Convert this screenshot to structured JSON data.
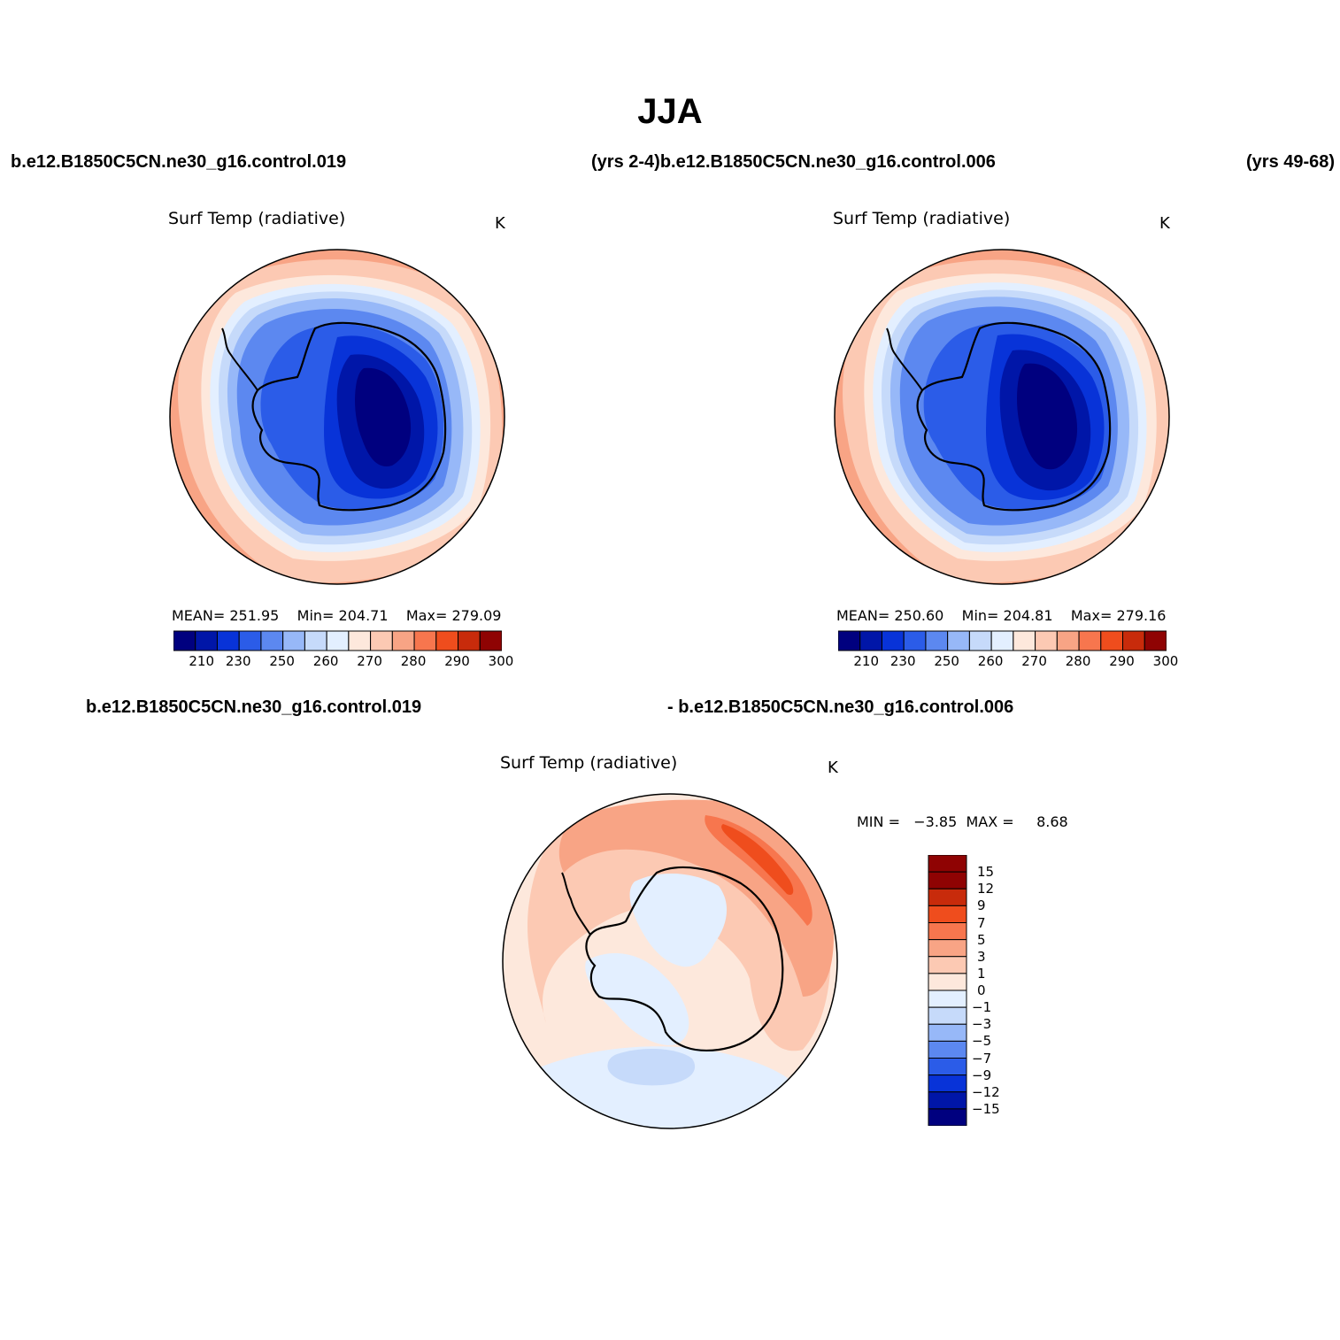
{
  "title": "JJA",
  "header_labels": {
    "case1": "b.e12.B1850C5CN.ne30_g16.control.019",
    "years1_case2": "(yrs 2-4)b.e12.B1850C5CN.ne30_g16.control.006",
    "years2": "(yrs 49-68)"
  },
  "diff_labels": {
    "case1": "b.e12.B1850C5CN.ne30_g16.control.019",
    "case2": "- b.e12.B1850C5CN.ne30_g16.control.006"
  },
  "panels": [
    {
      "id": "case1",
      "title": "Surf Temp (radiative)",
      "units": "K",
      "stats": {
        "mean_label": "MEAN=",
        "mean": "251.95",
        "min_label": "Min=",
        "min": "204.71",
        "max_label": "Max=",
        "max": "279.09"
      },
      "colorbar_ticks": [
        "210",
        "230",
        "250",
        "260",
        "270",
        "280",
        "290",
        "300"
      ]
    },
    {
      "id": "case2",
      "title": "Surf Temp (radiative)",
      "units": "K",
      "stats": {
        "mean_label": "MEAN=",
        "mean": "250.60",
        "min_label": "Min=",
        "min": "204.81",
        "max_label": "Max=",
        "max": "279.16"
      },
      "colorbar_ticks": [
        "210",
        "230",
        "250",
        "260",
        "270",
        "280",
        "290",
        "300"
      ]
    },
    {
      "id": "difference",
      "title": "Surf Temp (radiative)",
      "units": "K",
      "minmax_text": "MIN =   −3.85  MAX =     8.68",
      "colorbar_ticks": [
        "15",
        "12",
        "9",
        "7",
        "5",
        "3",
        "1",
        "0",
        "−1",
        "−3",
        "−5",
        "−7",
        "−9",
        "−12",
        "−15"
      ]
    }
  ],
  "colors": {
    "abs_scale": [
      "#00007f",
      "#0016a8",
      "#0833d8",
      "#2b5ce8",
      "#5c88f0",
      "#97b8f8",
      "#c6dafa",
      "#e3efff",
      "#fde8dc",
      "#fcc9b3",
      "#f8a485",
      "#f7764e",
      "#ef4d1d",
      "#c82b0b",
      "#8f0303"
    ],
    "diff_scale": [
      "#00007f",
      "#0016a8",
      "#0833d8",
      "#2b5ce8",
      "#5c88f0",
      "#97b8f8",
      "#c6dafa",
      "#e3efff",
      "#fde8dc",
      "#fcc9b3",
      "#f8a485",
      "#f7764e",
      "#ef4d1d",
      "#c82b0b",
      "#8f0303"
    ]
  }
}
